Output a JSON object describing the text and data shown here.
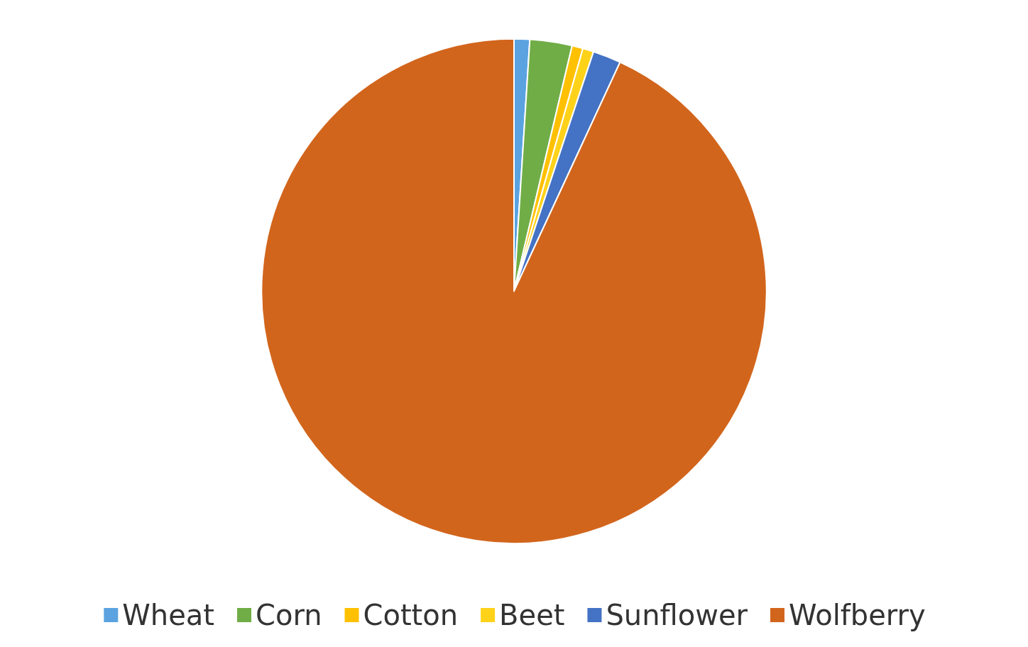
{
  "chart_data": {
    "type": "pie",
    "categories": [
      "Wheat",
      "Corn",
      "Cotton",
      "Beet",
      "Sunflower",
      "Wolfberry"
    ],
    "values": [
      1.0,
      2.7,
      0.7,
      0.7,
      1.8,
      93.1
    ],
    "colors": [
      "#5ba3e0",
      "#70ad47",
      "#ffc000",
      "#ffd21a",
      "#4472c4",
      "#d2651c"
    ],
    "legend": "bottom"
  }
}
